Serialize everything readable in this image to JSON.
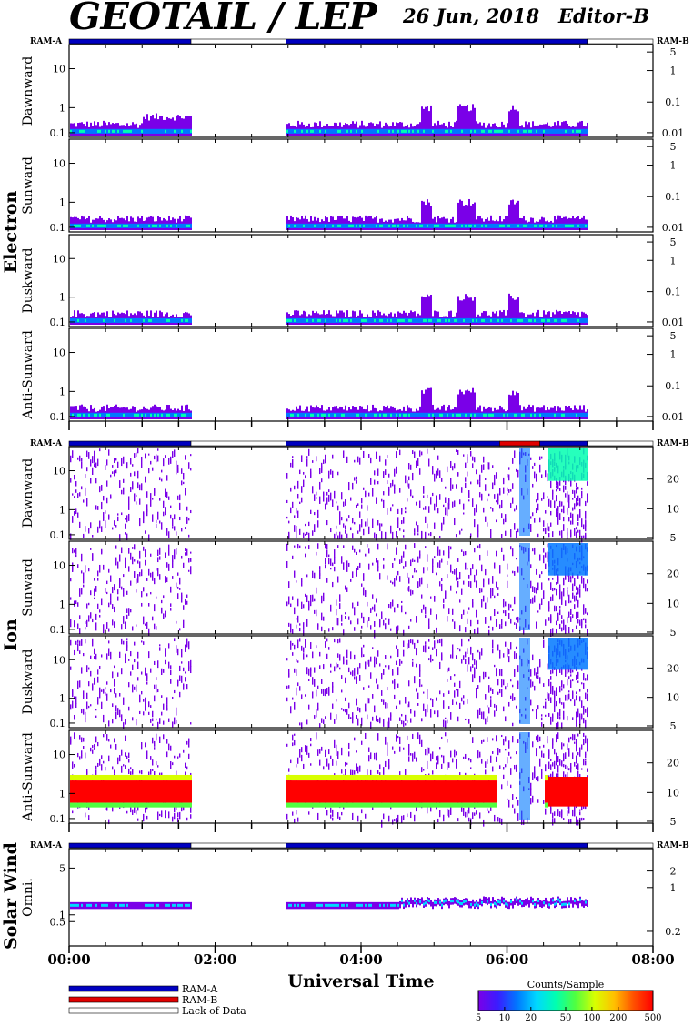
{
  "header": {
    "title": "GEOTAIL / LEP",
    "date": "26 Jun, 2018",
    "editor": "Editor-B"
  },
  "colors": {
    "ram_a": "#0000c0",
    "ram_b": "#e00000",
    "lack": "#ffffff",
    "colormap": [
      "#7a00e8",
      "#3a1cff",
      "#0078ff",
      "#00d8ff",
      "#00ffb0",
      "#50ff40",
      "#d8ff00",
      "#ffc000",
      "#ff5000",
      "#ff0000"
    ]
  },
  "chart_data": {
    "type": "heatmap",
    "xlabel": "Universal Time",
    "x_ticks": [
      "00:00",
      "02:00",
      "04:00",
      "06:00",
      "08:00"
    ],
    "x_range_hours": [
      0,
      8
    ],
    "data_coverage_hours": [
      [
        0.0,
        1.67
      ],
      [
        2.97,
        7.1
      ]
    ],
    "groups": [
      {
        "group": "Electron",
        "ram_bar_label_left": "RAM-A",
        "ram_bar_label_right": "RAM-B",
        "ram_bar": [
          {
            "start": 0.0,
            "end": 1.67,
            "state": "RAM-A"
          },
          {
            "start": 1.67,
            "end": 2.97,
            "state": "Lack of Data"
          },
          {
            "start": 2.97,
            "end": 7.1,
            "state": "RAM-A"
          },
          {
            "start": 7.1,
            "end": 8.0,
            "state": "Lack of Data"
          }
        ],
        "panels": [
          {
            "name": "Dawnward",
            "left_ticks": [
              "10",
              "1",
              "0.1"
            ],
            "right_ticks": [
              "5",
              "1",
              "0.1",
              "0.01"
            ]
          },
          {
            "name": "Sunward",
            "left_ticks": [
              "10",
              "1",
              "0.1"
            ],
            "right_ticks": [
              "5",
              "1",
              "0.1",
              "0.01"
            ]
          },
          {
            "name": "Duskward",
            "left_ticks": [
              "10",
              "1",
              "0.1"
            ],
            "right_ticks": [
              "5",
              "1",
              "0.1",
              "0.01"
            ]
          },
          {
            "name": "Anti-Sunward",
            "left_ticks": [
              "10",
              "1",
              "0.1"
            ],
            "right_ticks": [
              "5",
              "1",
              "0.1",
              "0.01"
            ]
          }
        ]
      },
      {
        "group": "Ion",
        "ram_bar_label_left": "RAM-A",
        "ram_bar_label_right": "RAM-B",
        "ram_bar": [
          {
            "start": 0.0,
            "end": 1.67,
            "state": "RAM-A"
          },
          {
            "start": 1.67,
            "end": 2.97,
            "state": "Lack of Data"
          },
          {
            "start": 2.97,
            "end": 5.9,
            "state": "RAM-A"
          },
          {
            "start": 5.9,
            "end": 6.45,
            "state": "RAM-B"
          },
          {
            "start": 6.45,
            "end": 7.1,
            "state": "RAM-A"
          },
          {
            "start": 7.1,
            "end": 8.0,
            "state": "Lack of Data"
          }
        ],
        "panels": [
          {
            "name": "Dawnward",
            "left_ticks": [
              "10",
              "1",
              "0.1"
            ],
            "right_ticks": [
              "20",
              "10",
              "5"
            ]
          },
          {
            "name": "Sunward",
            "left_ticks": [
              "10",
              "1",
              "0.1"
            ],
            "right_ticks": [
              "20",
              "10",
              "5"
            ]
          },
          {
            "name": "Duskward",
            "left_ticks": [
              "10",
              "1",
              "0.1"
            ],
            "right_ticks": [
              "20",
              "10",
              "5"
            ]
          },
          {
            "name": "Anti-Sunward",
            "left_ticks": [
              "10",
              "1",
              "0.1"
            ],
            "right_ticks": [
              "20",
              "10",
              "5"
            ]
          }
        ]
      },
      {
        "group": "Solar Wind",
        "ram_bar_label_left": "RAM-A",
        "ram_bar_label_right": "RAM-B",
        "ram_bar": [
          {
            "start": 0.0,
            "end": 1.67,
            "state": "RAM-A"
          },
          {
            "start": 1.67,
            "end": 2.97,
            "state": "Lack of Data"
          },
          {
            "start": 2.97,
            "end": 7.1,
            "state": "RAM-A"
          },
          {
            "start": 7.1,
            "end": 8.0,
            "state": "Lack of Data"
          }
        ],
        "panels": [
          {
            "name": "Omni.",
            "left_ticks": [
              "5",
              "1",
              "0.5"
            ],
            "right_ticks": [
              "2",
              "1",
              "0.2"
            ]
          }
        ]
      }
    ],
    "legend": {
      "items": [
        "RAM-A",
        "RAM-B",
        "Lack of Data"
      ],
      "colorbar_title": "Counts/Sample",
      "colorbar_ticks": [
        "5",
        "10",
        "20",
        "50",
        "100",
        "200",
        "500"
      ]
    }
  }
}
